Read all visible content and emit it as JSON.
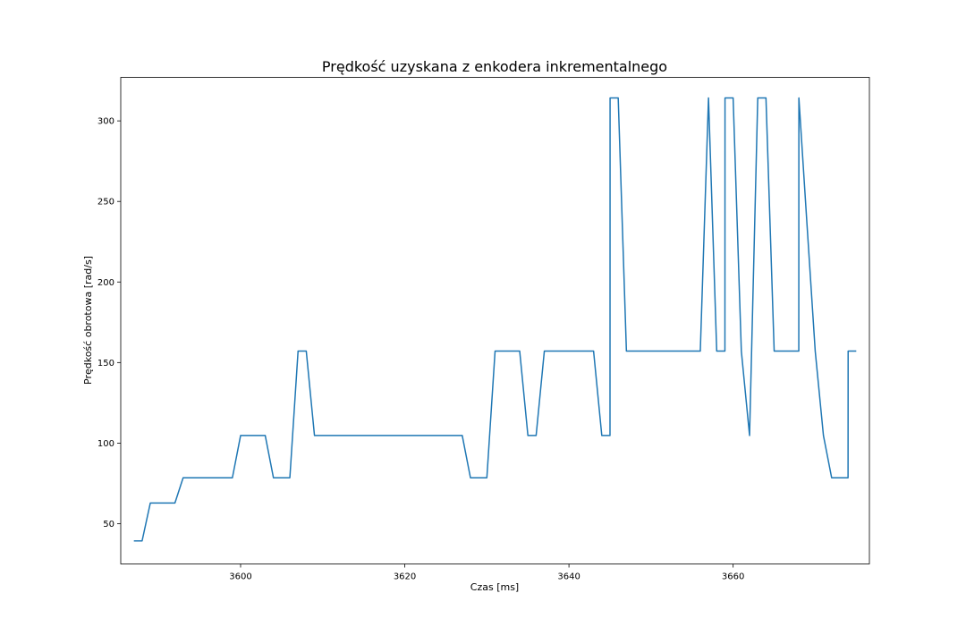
{
  "chart_data": {
    "type": "line",
    "title": "Prędkość uzyskana z enkodera inkrementalnego",
    "xlabel": "Czas [ms]",
    "ylabel": "Prędkość obrotowa [rad/s]",
    "xlim": [
      3585.4,
      3676.6
    ],
    "ylim": [
      25,
      327
    ],
    "xticks": [
      3600,
      3620,
      3640,
      3660
    ],
    "yticks": [
      50,
      100,
      150,
      200,
      250,
      300
    ],
    "grid": false,
    "series": [
      {
        "color": "#1f77b4",
        "x": [
          3587,
          3588,
          3589,
          3590,
          3591,
          3592,
          3593,
          3594,
          3595,
          3596,
          3597,
          3598,
          3599,
          3600,
          3601,
          3602,
          3603,
          3604,
          3605,
          3606,
          3607,
          3608,
          3609,
          3610,
          3611,
          3612,
          3613,
          3614,
          3615,
          3616,
          3617,
          3618,
          3619,
          3620,
          3621,
          3622,
          3623,
          3624,
          3625,
          3626,
          3627,
          3628,
          3629,
          3630,
          3631,
          3632,
          3633,
          3634,
          3635,
          3636,
          3637,
          3638,
          3639,
          3640,
          3641,
          3642,
          3643,
          3644,
          3645,
          3645.01,
          3646,
          3647,
          3648,
          3649,
          3650,
          3651,
          3652,
          3653,
          3654,
          3655,
          3656,
          3657,
          3658,
          3659,
          3659.01,
          3660,
          3661,
          3662,
          3663,
          3664,
          3665,
          3666,
          3667,
          3668,
          3668.01,
          3669,
          3670,
          3671,
          3672,
          3673,
          3674,
          3674.01,
          3675
        ],
        "y": [
          39.3,
          39.3,
          62.8,
          62.8,
          62.8,
          62.8,
          78.5,
          78.5,
          78.5,
          78.5,
          78.5,
          78.5,
          78.5,
          104.7,
          104.7,
          104.7,
          104.7,
          78.5,
          78.5,
          78.5,
          157.1,
          157.1,
          104.7,
          104.7,
          104.7,
          104.7,
          104.7,
          104.7,
          104.7,
          104.7,
          104.7,
          104.7,
          104.7,
          104.7,
          104.7,
          104.7,
          104.7,
          104.7,
          104.7,
          104.7,
          104.7,
          78.5,
          78.5,
          78.5,
          157.1,
          157.1,
          157.1,
          157.1,
          104.7,
          104.7,
          157.1,
          157.1,
          157.1,
          157.1,
          157.1,
          157.1,
          157.1,
          104.7,
          104.7,
          314.2,
          314.2,
          157.1,
          157.1,
          157.1,
          157.1,
          157.1,
          157.1,
          157.1,
          157.1,
          157.1,
          157.1,
          314.2,
          157.1,
          157.1,
          314.2,
          314.2,
          157.1,
          104.7,
          314.2,
          314.2,
          157.1,
          157.1,
          157.1,
          157.1,
          314.2,
          235.6,
          157.1,
          104.7,
          78.5,
          78.5,
          78.5,
          157.1,
          157.1
        ]
      }
    ]
  }
}
